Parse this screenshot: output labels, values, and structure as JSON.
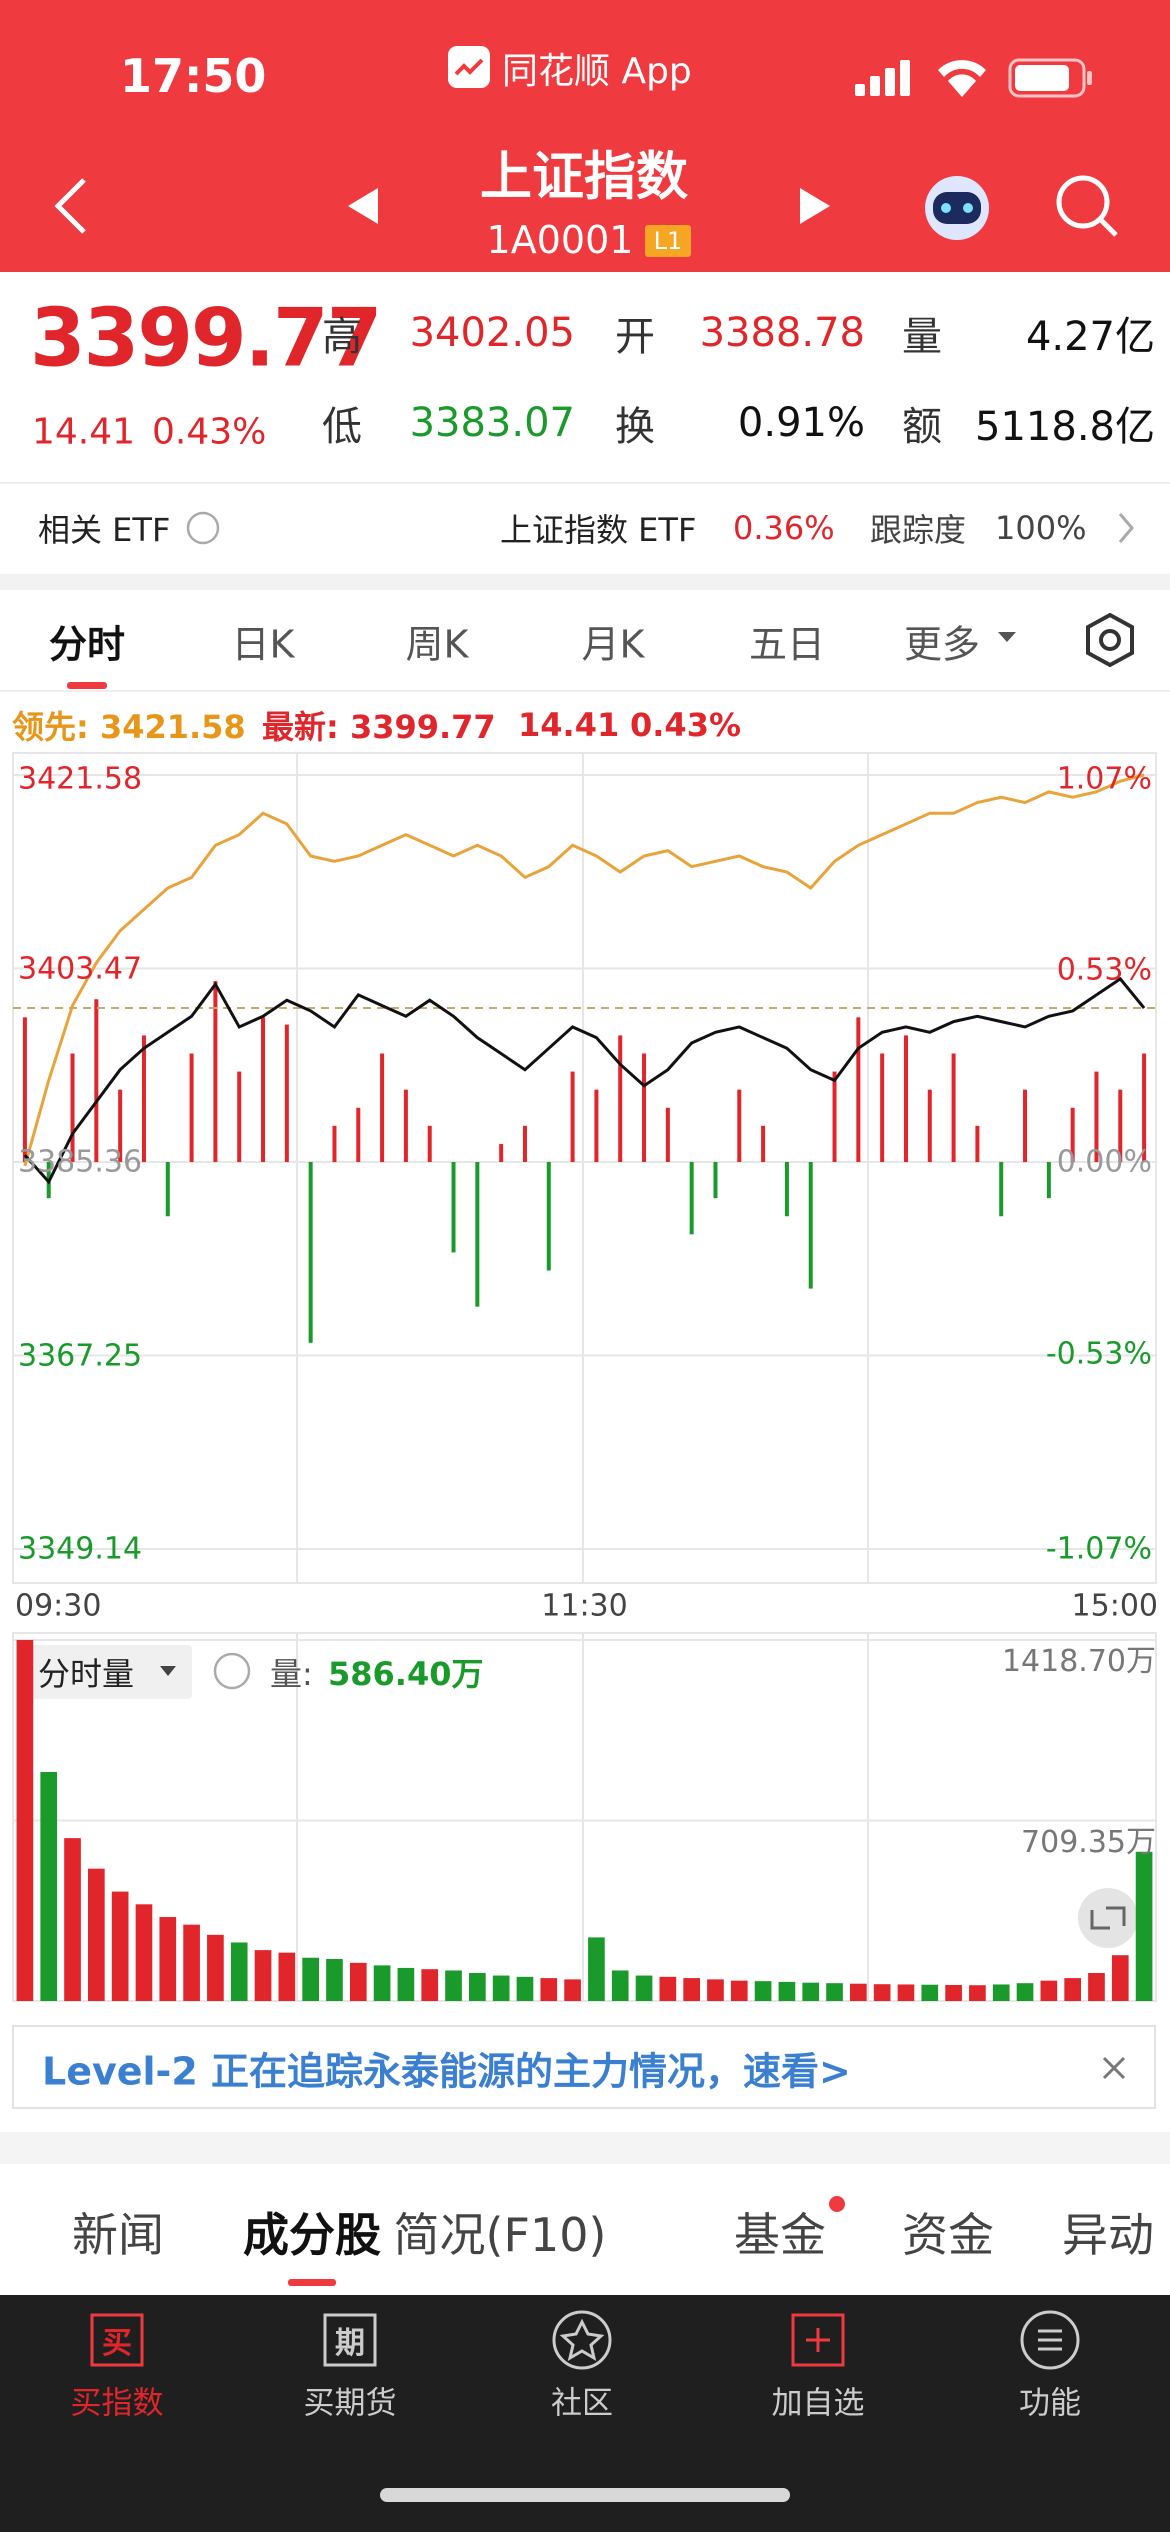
{
  "status_bar": {
    "time": "17:50",
    "app": "同花顺 App"
  },
  "nav": {
    "title": "上证指数",
    "code": "1A0001",
    "level": "L1"
  },
  "quote": {
    "price": "3399.77",
    "change": "14.41",
    "change_pct": "0.43%",
    "stats": [
      {
        "label": "高",
        "value": "3402.05",
        "color": "#e0262b"
      },
      {
        "label": "开",
        "value": "3388.78",
        "color": "#e0262b"
      },
      {
        "label": "量",
        "value": "4.27亿",
        "color": "#111111"
      },
      {
        "label": "低",
        "value": "3383.07",
        "color": "#1a9a2a"
      },
      {
        "label": "换",
        "value": "0.91%",
        "color": "#111111"
      },
      {
        "label": "额",
        "value": "5118.8亿",
        "color": "#111111"
      }
    ]
  },
  "etf": {
    "label": "相关 ETF",
    "name": "上证指数 ETF",
    "change": "0.36%",
    "tracking_label": "跟踪度",
    "tracking": "100%"
  },
  "chart_tabs": [
    "分时",
    "日K",
    "周K",
    "月K",
    "五日",
    "更多"
  ],
  "legend": {
    "lead": "领先: 3421.58",
    "latest": "最新: 3399.77",
    "change": "14.41",
    "change_pct": "0.43%"
  },
  "chart_data": [
    {
      "type": "line",
      "xticks": [
        "09:30",
        "11:30",
        "15:00"
      ],
      "ylim": [
        3349.14,
        3421.58
      ],
      "yticks": [
        3421.58,
        3403.47,
        3385.36,
        3367.25,
        3349.14
      ],
      "y2lim": [
        -1.07,
        1.07
      ],
      "y2ticks": [
        {
          "value": 1.07,
          "label": "1.07%"
        },
        {
          "value": 0.53,
          "label": "0.53%"
        },
        {
          "value": 0,
          "label": "0.00%"
        },
        {
          "value": -0.53,
          "label": "-0.53%"
        },
        {
          "value": -1.07,
          "label": "-1.07%"
        }
      ],
      "grid": true,
      "series": [
        {
          "color": "#e8a33a",
          "values": [
            3385,
            3393,
            3400,
            3404,
            3407,
            3409,
            3411,
            3412,
            3415,
            3416,
            3418,
            3417,
            3414,
            3413.5,
            3414,
            3415,
            3416,
            3415,
            3414,
            3415,
            3414,
            3412,
            3413,
            3415,
            3414,
            3412.5,
            3414,
            3414.5,
            3413,
            3413.5,
            3414,
            3413,
            3412.5,
            3411,
            3413.5,
            3415,
            3416,
            3417,
            3418,
            3418,
            3419,
            3419.5,
            3419,
            3420,
            3419.5,
            3420,
            3421,
            3421.58
          ]
        },
        {
          "color": "#111111",
          "values": [
            3386,
            3383.5,
            3388,
            3391,
            3394,
            3396,
            3397.5,
            3399,
            3402,
            3398,
            3399,
            3400.5,
            3399.5,
            3398,
            3401,
            3400,
            3399,
            3400.5,
            3399,
            3397,
            3395.5,
            3394,
            3396,
            3398,
            3397,
            3394.5,
            3392.5,
            3394,
            3396.5,
            3397.5,
            3398,
            3397,
            3396,
            3394,
            3393,
            3396,
            3397.5,
            3398,
            3397.5,
            3398.5,
            3399,
            3398.5,
            3398,
            3399,
            3399.5,
            3401,
            3402.5,
            3399.77
          ]
        },
        {
          "type": "bar",
          "axis": "y2",
          "up_color": "#e0262b",
          "down_color": "#1a9a2a",
          "values": [
            0.4,
            -0.1,
            0.3,
            0.45,
            0.2,
            0.35,
            -0.15,
            0.3,
            0.5,
            0.25,
            0.4,
            0.38,
            -0.5,
            0.1,
            0.15,
            0.3,
            0.2,
            0.1,
            -0.25,
            -0.4,
            0.05,
            0.1,
            -0.3,
            0.25,
            0.2,
            0.35,
            0.3,
            0.15,
            -0.2,
            -0.1,
            0.2,
            0.1,
            -0.15,
            -0.35,
            0.25,
            0.4,
            0.3,
            0.35,
            0.2,
            0.3,
            0.1,
            -0.15,
            0.2,
            -0.1,
            0.15,
            0.25,
            0.2,
            0.3
          ]
        }
      ]
    },
    {
      "type": "bar",
      "title": "分时量",
      "value_label": "量:",
      "value": "586.40万",
      "ylim": [
        0,
        1418.7
      ],
      "yticks": [
        {
          "value": 1418.7,
          "label": "1418.70万"
        },
        {
          "value": 709.35,
          "label": "709.35万"
        }
      ],
      "up_color": "#e0262b",
      "down_color": "#1a9a2a",
      "values": [
        1418.7,
        900,
        640,
        520,
        430,
        380,
        330,
        300,
        260,
        230,
        200,
        190,
        170,
        165,
        150,
        140,
        130,
        125,
        120,
        110,
        100,
        95,
        90,
        85,
        250,
        120,
        100,
        95,
        90,
        85,
        80,
        78,
        75,
        72,
        70,
        68,
        66,
        65,
        64,
        63,
        62,
        65,
        70,
        80,
        90,
        110,
        180,
        586.4
      ]
    }
  ],
  "banner": {
    "text": "Level-2 正在追踪永泰能源的主力情况，速看>"
  },
  "info_tabs": [
    "新闻",
    "成分股",
    "简况(F10)",
    "基金",
    "资金",
    "异动"
  ],
  "tab_bar": [
    {
      "icon": "买",
      "label": "买指数"
    },
    {
      "icon": "期",
      "label": "买期货"
    },
    {
      "label": "社区"
    },
    {
      "label": "加自选"
    },
    {
      "label": "功能"
    }
  ]
}
